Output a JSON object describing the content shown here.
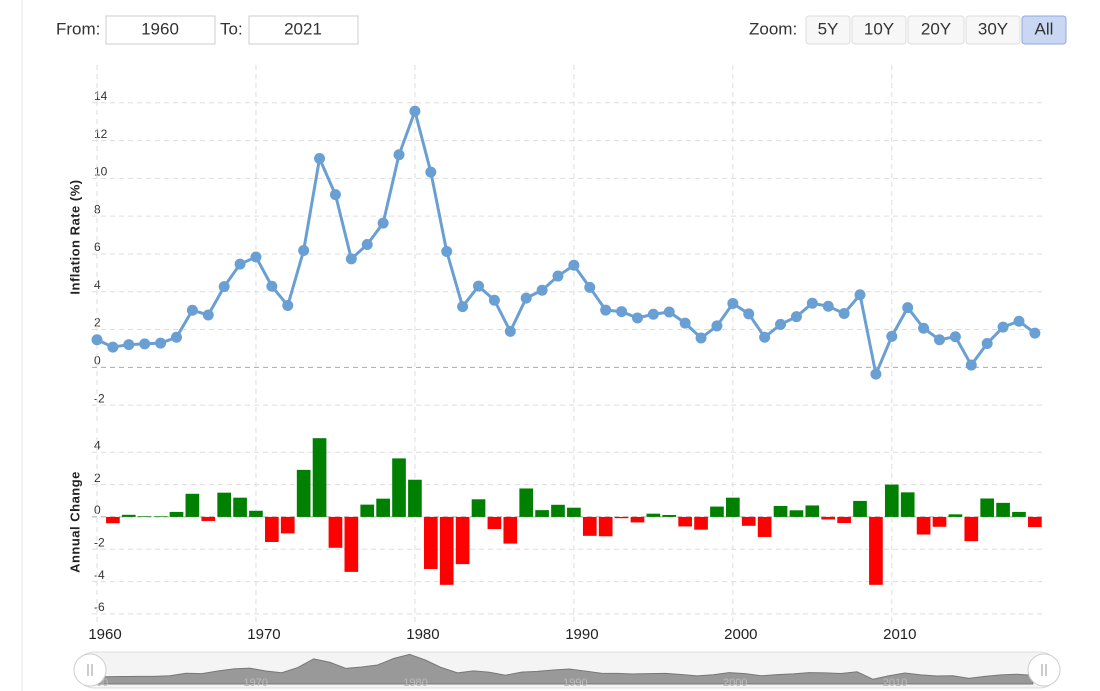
{
  "controls": {
    "from_label": "From:",
    "from": "1960",
    "to_label": "To:",
    "to": "2021",
    "zoom_label": "Zoom:",
    "zoom_buttons": [
      "5Y",
      "10Y",
      "20Y",
      "30Y",
      "All"
    ],
    "active_zoom": 4
  },
  "chart_data": [
    {
      "type": "line",
      "y_label": "Inflation Rate (%)",
      "x": [
        1960,
        1961,
        1962,
        1963,
        1964,
        1965,
        1966,
        1967,
        1968,
        1969,
        1970,
        1971,
        1972,
        1973,
        1974,
        1975,
        1976,
        1977,
        1978,
        1979,
        1980,
        1981,
        1982,
        1983,
        1984,
        1985,
        1986,
        1987,
        1988,
        1989,
        1990,
        1991,
        1992,
        1993,
        1994,
        1995,
        1996,
        1997,
        1998,
        1999,
        2000,
        2001,
        2002,
        2003,
        2004,
        2005,
        2006,
        2007,
        2008,
        2009,
        2010,
        2011,
        2012,
        2013,
        2014,
        2015,
        2016,
        2017,
        2018,
        2019
      ],
      "values": [
        1.46,
        1.07,
        1.2,
        1.24,
        1.28,
        1.59,
        3.02,
        2.77,
        4.27,
        5.46,
        5.84,
        4.29,
        3.27,
        6.18,
        11.05,
        9.14,
        5.74,
        6.5,
        7.63,
        11.25,
        13.55,
        10.33,
        6.13,
        3.21,
        4.3,
        3.55,
        1.9,
        3.66,
        4.08,
        4.83,
        5.4,
        4.23,
        3.03,
        2.95,
        2.61,
        2.81,
        2.93,
        2.34,
        1.55,
        2.19,
        3.38,
        2.83,
        1.59,
        2.27,
        2.68,
        3.39,
        3.23,
        2.85,
        3.84,
        -0.36,
        1.64,
        3.16,
        2.07,
        1.46,
        1.62,
        0.12,
        1.26,
        2.13,
        2.44,
        1.81
      ],
      "color": "#6a9fd4",
      "xlim": [
        1960,
        2019.7
      ],
      "ylim": [
        -3,
        16
      ],
      "yticks": [
        -2,
        0,
        2,
        4,
        6,
        8,
        10,
        12,
        14
      ],
      "grid": true
    },
    {
      "type": "bar",
      "y_label": "Annual Change",
      "x": [
        1961,
        1962,
        1963,
        1964,
        1965,
        1966,
        1967,
        1968,
        1969,
        1970,
        1971,
        1972,
        1973,
        1974,
        1975,
        1976,
        1977,
        1978,
        1979,
        1980,
        1981,
        1982,
        1983,
        1984,
        1985,
        1986,
        1987,
        1988,
        1989,
        1990,
        1991,
        1992,
        1993,
        1994,
        1995,
        1996,
        1997,
        1998,
        1999,
        2000,
        2001,
        2002,
        2003,
        2004,
        2005,
        2006,
        2007,
        2008,
        2009,
        2010,
        2011,
        2012,
        2013,
        2014,
        2015,
        2016,
        2017,
        2018,
        2019
      ],
      "values": [
        -0.39,
        0.13,
        0.04,
        0.04,
        0.31,
        1.43,
        -0.25,
        1.5,
        1.19,
        0.38,
        -1.55,
        -1.02,
        2.91,
        4.87,
        -1.91,
        -3.4,
        0.76,
        1.13,
        3.62,
        2.3,
        -3.22,
        -4.2,
        -2.92,
        1.09,
        -0.75,
        -1.65,
        1.76,
        0.42,
        0.75,
        0.57,
        -1.17,
        -1.2,
        -0.08,
        -0.34,
        0.2,
        0.12,
        -0.59,
        -0.79,
        0.64,
        1.19,
        -0.55,
        -1.24,
        0.68,
        0.41,
        0.71,
        -0.16,
        -0.38,
        0.99,
        -4.2,
        2.0,
        1.52,
        -1.09,
        -0.61,
        0.16,
        -1.5,
        1.14,
        0.87,
        0.31,
        -0.63
      ],
      "positive_color": "#008000",
      "negative_color": "#ff0000",
      "xlim": [
        1960,
        2019.7
      ],
      "xticks": [
        1960,
        1970,
        1980,
        1990,
        2000,
        2010
      ],
      "ylim": [
        -6.5,
        5.5
      ],
      "yticks": [
        -6,
        -4,
        -2,
        0,
        2,
        4
      ],
      "grid": true
    }
  ]
}
